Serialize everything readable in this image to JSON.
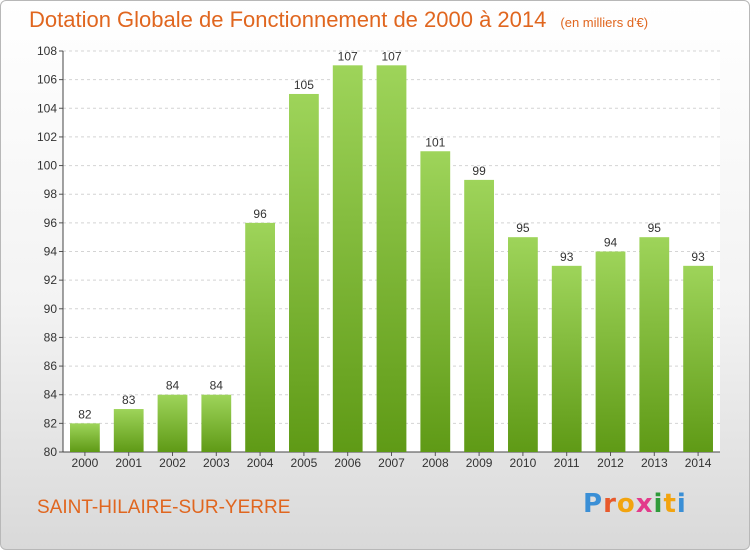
{
  "title": "Dotation Globale de Fonctionnement de 2000 à 2014",
  "unit_note": "(en milliers d'€)",
  "commune": "SAINT-HILAIRE-SUR-YERRE",
  "logo": {
    "text": "Proxiti",
    "letter_colors": [
      "#3a8fd6",
      "#e8592b",
      "#f2a40f",
      "#e33b8b",
      "#2f9a3a",
      "#f2a40f",
      "#3a8fd6"
    ]
  },
  "colors": {
    "title": "#e0661f",
    "bar_top": "#9ed45a",
    "bar_bottom": "#5f9a16"
  },
  "chart_data": {
    "type": "bar",
    "categories": [
      "2000",
      "2001",
      "2002",
      "2003",
      "2004",
      "2005",
      "2006",
      "2007",
      "2008",
      "2009",
      "2010",
      "2011",
      "2012",
      "2013",
      "2014"
    ],
    "values": [
      82,
      83,
      84,
      84,
      96,
      105,
      107,
      107,
      101,
      99,
      95,
      93,
      94,
      95,
      93
    ],
    "ylim": [
      80,
      108
    ],
    "yticks": [
      80,
      82,
      84,
      86,
      88,
      90,
      92,
      94,
      96,
      98,
      100,
      102,
      104,
      106,
      108
    ],
    "grid": true,
    "xlabel": "",
    "ylabel": ""
  }
}
